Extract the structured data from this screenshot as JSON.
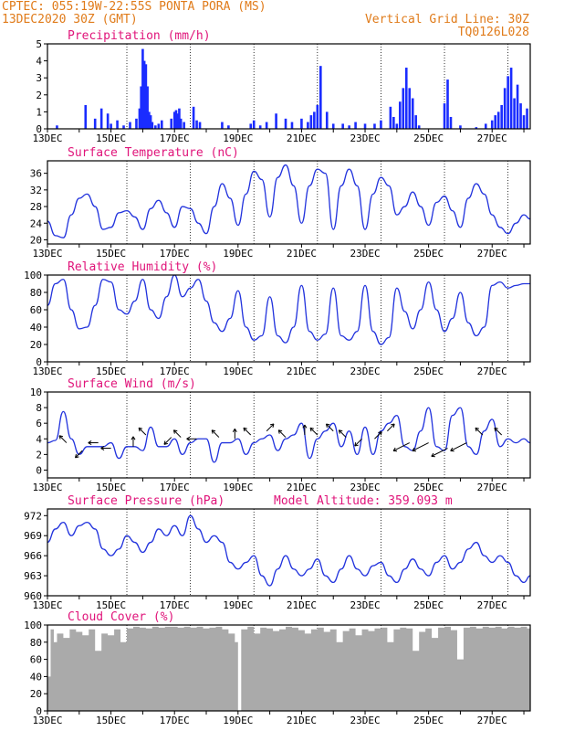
{
  "header": {
    "left_line1": "CPTEC:  055:19W-22:55S  PONTA PORA (MS)",
    "left_line2": "13DEC2020 30Z (GMT)",
    "right_line1": "Vertical Grid Line: 30Z",
    "right_line2": "TQ0126L028"
  },
  "colors": {
    "series": "#2233dd",
    "titles": "#e0147a",
    "header": "#e07b1a",
    "cloud": "#aaaaaa",
    "precip": "#1a2cff"
  },
  "x_axis": {
    "tick_labels": [
      "13DEC",
      "15DEC",
      "17DEC",
      "19DEC",
      "21DEC",
      "23DEC",
      "25DEC",
      "27DEC"
    ],
    "tick_days": [
      0,
      2,
      4,
      6,
      8,
      10,
      12,
      14
    ],
    "range_days": [
      0,
      15.2
    ],
    "grid_days": [
      2.5,
      4.5,
      6.5,
      8.5,
      10.5,
      12.5,
      14.5
    ]
  },
  "chart_data": [
    {
      "id": "precip",
      "type": "bar",
      "title": "Precipitation (mm/h)",
      "ylim": [
        0,
        5
      ],
      "yticks": [
        0,
        1,
        2,
        3,
        4,
        5
      ],
      "x": [
        0.3,
        1.2,
        1.5,
        1.7,
        1.9,
        2.0,
        2.2,
        2.4,
        2.6,
        2.8,
        2.9,
        2.95,
        3.0,
        3.05,
        3.1,
        3.15,
        3.2,
        3.25,
        3.3,
        3.4,
        3.5,
        3.6,
        3.9,
        4.0,
        4.05,
        4.1,
        4.15,
        4.2,
        4.3,
        4.6,
        4.7,
        4.8,
        5.5,
        5.7,
        6.4,
        6.5,
        6.7,
        6.9,
        7.2,
        7.5,
        7.7,
        8.0,
        8.2,
        8.3,
        8.4,
        8.5,
        8.6,
        8.8,
        9.0,
        9.3,
        9.5,
        9.7,
        10.0,
        10.3,
        10.5,
        10.8,
        10.9,
        11.0,
        11.1,
        11.2,
        11.3,
        11.4,
        11.5,
        11.6,
        11.7,
        12.5,
        12.6,
        12.7,
        13.0,
        13.5,
        13.8,
        14.0,
        14.1,
        14.2,
        14.3,
        14.4,
        14.5,
        14.6,
        14.7,
        14.8,
        14.9,
        15.0,
        15.1
      ],
      "values": [
        0.2,
        1.4,
        0.6,
        1.2,
        0.9,
        0.3,
        0.5,
        0.2,
        0.4,
        0.6,
        1.2,
        2.5,
        4.7,
        4.0,
        3.8,
        2.5,
        1.0,
        0.8,
        0.4,
        0.2,
        0.3,
        0.5,
        0.6,
        1.0,
        1.1,
        0.9,
        1.2,
        0.6,
        0.4,
        1.3,
        0.5,
        0.4,
        0.4,
        0.2,
        0.3,
        0.5,
        0.2,
        0.4,
        0.9,
        0.6,
        0.4,
        0.6,
        0.4,
        0.8,
        1.0,
        1.4,
        3.7,
        1.0,
        0.3,
        0.3,
        0.2,
        0.4,
        0.3,
        0.3,
        0.5,
        1.3,
        0.7,
        0.3,
        1.6,
        2.4,
        3.6,
        2.4,
        1.8,
        0.8,
        0.2,
        1.5,
        2.9,
        0.7,
        0.2,
        0.1,
        0.3,
        0.5,
        0.8,
        1.0,
        1.4,
        2.4,
        3.1,
        3.6,
        1.8,
        2.6,
        1.5,
        0.8,
        1.2
      ]
    },
    {
      "id": "temp",
      "type": "line",
      "title": "Surface Temperature (nC)",
      "ylim": [
        19,
        39
      ],
      "yticks": [
        20,
        24,
        28,
        32,
        36
      ],
      "x": [
        0,
        0.25,
        0.5,
        0.75,
        1.0,
        1.25,
        1.5,
        1.75,
        2.0,
        2.25,
        2.5,
        2.75,
        3.0,
        3.25,
        3.5,
        3.75,
        4.0,
        4.25,
        4.5,
        4.75,
        5.0,
        5.25,
        5.5,
        5.75,
        6.0,
        6.25,
        6.5,
        6.75,
        7.0,
        7.25,
        7.5,
        7.75,
        8.0,
        8.25,
        8.5,
        8.75,
        9.0,
        9.25,
        9.5,
        9.75,
        10.0,
        10.25,
        10.5,
        10.75,
        11.0,
        11.25,
        11.5,
        11.75,
        12.0,
        12.25,
        12.5,
        12.75,
        13.0,
        13.25,
        13.5,
        13.75,
        14.0,
        14.25,
        14.5,
        14.75,
        15.0,
        15.2
      ],
      "values": [
        24.5,
        21.0,
        20.5,
        26,
        30,
        31,
        28,
        22.5,
        23,
        26.5,
        27,
        25.5,
        22.5,
        27.5,
        29.5,
        26.5,
        23,
        28,
        27.5,
        24,
        21.5,
        28,
        33.5,
        30,
        23.5,
        31,
        36.5,
        34.5,
        25.5,
        35,
        38,
        33,
        24,
        33,
        37,
        36,
        22.5,
        33,
        37,
        33,
        22.5,
        31,
        35,
        33,
        26,
        28,
        31.5,
        28,
        23.5,
        29,
        30.5,
        27,
        23,
        30,
        33.5,
        31,
        26,
        23,
        21.5,
        24,
        26,
        25
      ]
    },
    {
      "id": "rh",
      "type": "line",
      "title": "Relative Humidity (%)",
      "ylim": [
        0,
        100
      ],
      "yticks": [
        0,
        20,
        40,
        60,
        80,
        100
      ],
      "x": [
        0,
        0.25,
        0.5,
        0.75,
        1.0,
        1.25,
        1.5,
        1.75,
        2.0,
        2.25,
        2.5,
        2.75,
        3.0,
        3.25,
        3.5,
        3.75,
        4.0,
        4.25,
        4.5,
        4.75,
        5.0,
        5.25,
        5.5,
        5.75,
        6.0,
        6.25,
        6.5,
        6.75,
        7.0,
        7.25,
        7.5,
        7.75,
        8.0,
        8.25,
        8.5,
        8.75,
        9.0,
        9.25,
        9.5,
        9.75,
        10.0,
        10.25,
        10.5,
        10.75,
        11.0,
        11.25,
        11.5,
        11.75,
        12.0,
        12.25,
        12.5,
        12.75,
        13.0,
        13.25,
        13.5,
        13.75,
        14.0,
        14.25,
        14.5,
        14.75,
        15.0,
        15.2
      ],
      "values": [
        65,
        90,
        95,
        60,
        38,
        40,
        65,
        95,
        92,
        60,
        55,
        70,
        95,
        60,
        50,
        75,
        100,
        75,
        85,
        95,
        70,
        45,
        35,
        50,
        82,
        40,
        25,
        30,
        75,
        30,
        22,
        40,
        88,
        35,
        25,
        32,
        85,
        30,
        25,
        35,
        88,
        35,
        20,
        28,
        85,
        58,
        38,
        60,
        92,
        60,
        35,
        50,
        80,
        45,
        30,
        40,
        88,
        92,
        85,
        88,
        90,
        90
      ]
    },
    {
      "id": "wind",
      "type": "line",
      "title": "Surface Wind (m/s)",
      "ylim": [
        -1,
        10
      ],
      "yticks": [
        0,
        2,
        4,
        6,
        8,
        10
      ],
      "x": [
        0,
        0.25,
        0.5,
        0.75,
        1.0,
        1.25,
        1.5,
        1.75,
        2.0,
        2.25,
        2.5,
        2.75,
        3.0,
        3.25,
        3.5,
        3.75,
        4.0,
        4.25,
        4.5,
        4.75,
        5.0,
        5.25,
        5.5,
        5.75,
        6.0,
        6.25,
        6.5,
        6.75,
        7.0,
        7.25,
        7.5,
        7.75,
        8.0,
        8.25,
        8.5,
        8.75,
        9.0,
        9.25,
        9.5,
        9.75,
        10.0,
        10.25,
        10.5,
        10.75,
        11.0,
        11.25,
        11.5,
        11.75,
        12.0,
        12.25,
        12.5,
        12.75,
        13.0,
        13.25,
        13.5,
        13.75,
        14.0,
        14.25,
        14.5,
        14.75,
        15.0,
        15.2
      ],
      "values": [
        3.5,
        3.8,
        7.5,
        4,
        2,
        3,
        3,
        3,
        3.5,
        1.5,
        3,
        3,
        2.5,
        5.5,
        3,
        3,
        4,
        2,
        3.5,
        4,
        4,
        1,
        3.5,
        3.5,
        4,
        2,
        3.5,
        4,
        4.5,
        2.5,
        4,
        4.5,
        6,
        1.5,
        4,
        5,
        6,
        3,
        5,
        2,
        5.5,
        2,
        5,
        6,
        7,
        3,
        2.5,
        5,
        8,
        3,
        2.5,
        7,
        8,
        3,
        2,
        5,
        6.5,
        3,
        4,
        3.5,
        4,
        3.5
      ],
      "arrows": [
        [
          0.6,
          3.5
        ],
        [
          1.1,
          2.5
        ],
        [
          1.6,
          3.5
        ],
        [
          2.0,
          2.8
        ],
        [
          2.7,
          3.0
        ],
        [
          3.1,
          4.5
        ],
        [
          3.9,
          4.2
        ],
        [
          4.2,
          4.2
        ],
        [
          4.7,
          4.0
        ],
        [
          5.4,
          4.2
        ],
        [
          5.9,
          4.0
        ],
        [
          6.4,
          4.5
        ],
        [
          6.9,
          5.0
        ],
        [
          7.5,
          4.2
        ],
        [
          8.1,
          4.5
        ],
        [
          8.5,
          4.5
        ],
        [
          9.0,
          5.0
        ],
        [
          9.4,
          4.2
        ],
        [
          9.9,
          4.0
        ],
        [
          10.3,
          4.0
        ],
        [
          10.7,
          5.0
        ],
        [
          11.4,
          3.5
        ],
        [
          12.0,
          3.5
        ],
        [
          12.6,
          2.8
        ],
        [
          13.2,
          3.5
        ],
        [
          13.7,
          4.5
        ],
        [
          14.3,
          4.5
        ]
      ],
      "arrow_vectors": [
        [
          -1,
          1
        ],
        [
          -1,
          -1
        ],
        [
          -1,
          0
        ],
        [
          -1,
          0
        ],
        [
          0,
          1
        ],
        [
          -1,
          1
        ],
        [
          -1,
          -1
        ],
        [
          -1,
          1
        ],
        [
          -1,
          0
        ],
        [
          -1,
          1
        ],
        [
          0,
          1
        ],
        [
          -1,
          1
        ],
        [
          1,
          1
        ],
        [
          -1,
          1
        ],
        [
          0,
          1
        ],
        [
          -1,
          1
        ],
        [
          -1,
          1
        ],
        [
          -1,
          1
        ],
        [
          -1,
          -1
        ],
        [
          1,
          1
        ],
        [
          1,
          1
        ],
        [
          -2,
          -1
        ],
        [
          -2,
          -1
        ],
        [
          -2,
          -1
        ],
        [
          -2,
          -1
        ],
        [
          -1,
          1
        ],
        [
          -1,
          1
        ]
      ]
    },
    {
      "id": "pres",
      "type": "line",
      "title": "Surface Pressure (hPa)",
      "annotation": "Model Altitude: 359.093 m",
      "ylim": [
        960,
        973
      ],
      "yticks": [
        960,
        963,
        966,
        969,
        972
      ],
      "x": [
        0,
        0.25,
        0.5,
        0.75,
        1.0,
        1.25,
        1.5,
        1.75,
        2.0,
        2.25,
        2.5,
        2.75,
        3.0,
        3.25,
        3.5,
        3.75,
        4.0,
        4.25,
        4.5,
        4.75,
        5.0,
        5.25,
        5.5,
        5.75,
        6.0,
        6.25,
        6.5,
        6.75,
        7.0,
        7.25,
        7.5,
        7.75,
        8.0,
        8.25,
        8.5,
        8.75,
        9.0,
        9.25,
        9.5,
        9.75,
        10.0,
        10.25,
        10.5,
        10.75,
        11.0,
        11.25,
        11.5,
        11.75,
        12.0,
        12.25,
        12.5,
        12.75,
        13.0,
        13.25,
        13.5,
        13.75,
        14.0,
        14.25,
        14.5,
        14.75,
        15.0,
        15.2
      ],
      "values": [
        968,
        970,
        971,
        969,
        970.5,
        971,
        970,
        967,
        966,
        967,
        969,
        968,
        966.5,
        968,
        970,
        969,
        970.5,
        969,
        972,
        970,
        968,
        969,
        968,
        965,
        964,
        965,
        966,
        963,
        961.5,
        964,
        966,
        964,
        963,
        964,
        965.5,
        963,
        962,
        964,
        966,
        964,
        963,
        964.5,
        965,
        963,
        962,
        964,
        965.5,
        964,
        963,
        965,
        966,
        964,
        965,
        967,
        968,
        966,
        965,
        966,
        965,
        963,
        962,
        963
      ]
    },
    {
      "id": "cloud",
      "type": "area",
      "title": "Cloud Cover (%)",
      "ylim": [
        0,
        100
      ],
      "yticks": [
        0,
        20,
        40,
        60,
        80,
        100
      ],
      "x": [
        0,
        0.1,
        0.2,
        0.3,
        0.5,
        0.7,
        0.9,
        1.1,
        1.3,
        1.5,
        1.7,
        1.9,
        2.1,
        2.3,
        2.5,
        2.7,
        2.9,
        3.1,
        3.3,
        3.5,
        3.7,
        3.9,
        4.1,
        4.3,
        4.5,
        4.7,
        4.9,
        5.1,
        5.3,
        5.5,
        5.7,
        5.9,
        6.0,
        6.1,
        6.3,
        6.5,
        6.7,
        6.9,
        7.1,
        7.3,
        7.5,
        7.7,
        7.9,
        8.1,
        8.3,
        8.5,
        8.7,
        8.9,
        9.1,
        9.3,
        9.5,
        9.7,
        9.9,
        10.1,
        10.3,
        10.5,
        10.7,
        10.9,
        11.1,
        11.3,
        11.5,
        11.7,
        11.9,
        12.1,
        12.3,
        12.5,
        12.7,
        12.9,
        13.1,
        13.3,
        13.5,
        13.7,
        13.9,
        14.1,
        14.3,
        14.5,
        14.7,
        14.9,
        15.1,
        15.2
      ],
      "values": [
        40,
        95,
        80,
        90,
        85,
        95,
        92,
        88,
        95,
        70,
        90,
        88,
        95,
        80,
        96,
        98,
        97,
        96,
        98,
        97,
        98,
        98,
        97,
        98,
        97,
        98,
        96,
        97,
        98,
        95,
        90,
        80,
        0,
        95,
        98,
        90,
        97,
        96,
        93,
        95,
        98,
        97,
        94,
        90,
        95,
        97,
        92,
        95,
        80,
        93,
        96,
        88,
        95,
        93,
        96,
        97,
        80,
        95,
        97,
        96,
        70,
        92,
        96,
        85,
        97,
        98,
        94,
        60,
        97,
        98,
        96,
        98,
        97,
        98,
        96,
        98,
        97,
        98,
        96,
        90
      ]
    }
  ]
}
